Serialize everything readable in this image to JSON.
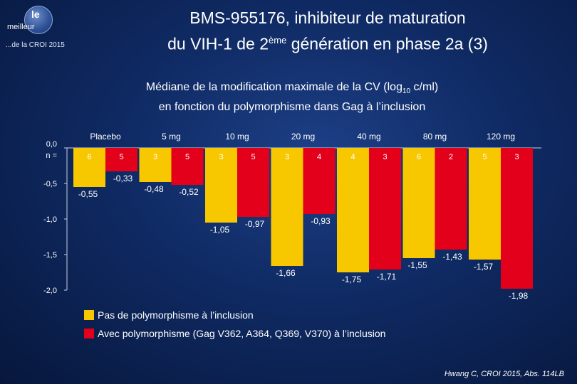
{
  "logo": {
    "le": "le",
    "meilleur": "meilleur",
    "sub": "...de la CROI 2015"
  },
  "title": {
    "line1": "BMS-955176, inhibiteur de maturation",
    "line2_pre": "du VIH-1 de 2",
    "line2_sup": "ème",
    "line2_post": " génération en phase 2a (3)"
  },
  "subtitle": {
    "line1_pre": "Médiane de la modification maximale de la CV (log",
    "line1_sub": "10",
    "line1_post": " c/ml)",
    "line2": "en fonction du polymorphisme dans Gag à l’inclusion"
  },
  "colors": {
    "no_poly": "#f7c800",
    "with_poly": "#e2001a"
  },
  "chart_data": {
    "type": "bar",
    "categories": [
      "Placebo",
      "5 mg",
      "10 mg",
      "20 mg",
      "40 mg",
      "80 mg",
      "120 mg"
    ],
    "series": [
      {
        "name": "Pas de polymorphisme à l’inclusion",
        "values": [
          -0.55,
          -0.48,
          -1.05,
          -1.66,
          -1.75,
          -1.55,
          -1.57
        ],
        "labels": [
          "-0,55",
          "-0,48",
          "-1,05",
          "-1,66",
          "-1,75",
          "-1,55",
          "-1,57"
        ],
        "n": [
          "6",
          "3",
          "3",
          "3",
          "4",
          "6",
          "5"
        ]
      },
      {
        "name": "Avec polymorphisme (Gag V362,  A364, Q369, V370) à l’inclusion",
        "values": [
          -0.33,
          -0.52,
          -0.97,
          -0.93,
          -1.71,
          -1.43,
          -1.98
        ],
        "labels": [
          "-0,33",
          "-0,52",
          "-0,97",
          "-0,93",
          "-1,71",
          "-1,43",
          "-1,98"
        ],
        "n": [
          "5",
          "5",
          "5",
          "4",
          "3",
          "2",
          "3"
        ]
      }
    ],
    "ylim": [
      -2.0,
      0.0
    ],
    "yticks": [
      0.0,
      -0.5,
      -1.0,
      -1.5,
      -2.0
    ],
    "ytick_labels": [
      "0,0",
      "-0,5",
      "-1,0",
      "-1,5",
      "-2,0"
    ],
    "n_label": "n ="
  },
  "legend": {
    "no_poly": "Pas de polymorphisme à l’inclusion",
    "with_poly": "Avec polymorphisme (Gag V362,  A364, Q369, V370) à l’inclusion"
  },
  "source": "Hwang C, CROI 2015, Abs. 114LB"
}
